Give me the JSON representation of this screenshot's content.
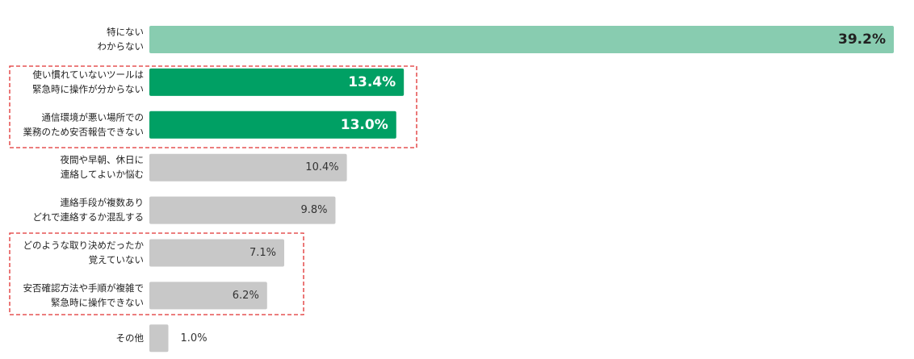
{
  "chart_data": {
    "type": "bar",
    "categories": [
      [
        "特にない",
        "わからない"
      ],
      [
        "使い慣れていないツールは",
        "緊急時に操作が分からない"
      ],
      [
        "通信環境が悪い場所での",
        "業務のため安否報告できない"
      ],
      [
        "夜間や早朝、休日に",
        "連絡してよいか悩む"
      ],
      [
        "連絡手段が複数あり",
        "どれで連絡するか混乱する"
      ],
      [
        "どのような取り決めだったか",
        "覚えていない"
      ],
      [
        "安否確認方法や手順が複雑で",
        "緊急時に操作できない"
      ],
      [
        "その他"
      ]
    ],
    "values": [
      39.2,
      13.4,
      13.0,
      10.4,
      9.8,
      7.1,
      6.2,
      1.0
    ],
    "value_labels": [
      "39.2%",
      "13.4%",
      "13.0%",
      "10.4%",
      "9.8%",
      "7.1%",
      "6.2%",
      "1.0%"
    ],
    "colors": [
      "#88ccb0",
      "#00a064",
      "#00a064",
      "#c8c8c8",
      "#c8c8c8",
      "#c8c8c8",
      "#c8c8c8",
      "#c8c8c8"
    ],
    "label_colors": [
      "#222222",
      "#ffffff",
      "#ffffff",
      "#333333",
      "#333333",
      "#333333",
      "#333333",
      "#333333"
    ],
    "label_bold": [
      true,
      true,
      true,
      false,
      false,
      false,
      false,
      false
    ]
  }
}
